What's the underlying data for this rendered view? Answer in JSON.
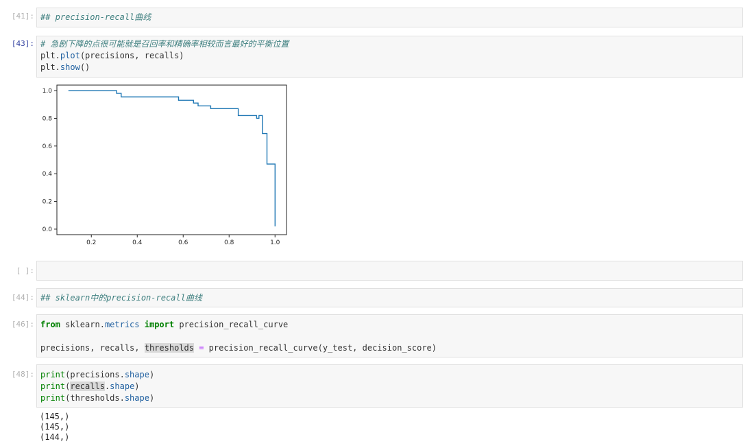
{
  "cells": {
    "c41": {
      "prompt": "[41]:",
      "text": "## precision-recall曲线"
    },
    "c43": {
      "prompt": "[43]:",
      "comment": "# 急剧下降的点很可能就是召回率和精确率相较而言最好的平衡位置",
      "l2_a": "plt.",
      "l2_b": "plot",
      "l2_c": "(precisions, recalls)",
      "l3_a": "plt.",
      "l3_b": "show",
      "l3_c": "()"
    },
    "cempty": {
      "prompt": "[ ]:"
    },
    "c44": {
      "prompt": "[44]:",
      "text": "## sklearn中的precision-recall曲线"
    },
    "c46": {
      "prompt": "[46]:",
      "l1_kw1": "from",
      "l1_mod": " sklearn.",
      "l1_attr": "metrics",
      "l1_kw2": "import",
      "l1_name": " precision_recall_curve",
      "l2_a": "precisions, recalls, ",
      "l2_hl": "thresholds",
      "l2_op": "=",
      "l2_b": " precision_recall_curve(y_test, decision_score)"
    },
    "c48": {
      "prompt": "[48]:",
      "l1_fn": "print",
      "l1_a": "(precisions.",
      "l1_attr": "shape",
      "l1_b": ")",
      "l2_fn": "print",
      "l2_a": "(",
      "l2_hl": "recalls",
      "l2_b": ".",
      "l2_attr": "shape",
      "l2_c": ")",
      "l3_fn": "print",
      "l3_a": "(thresholds.",
      "l3_attr": "shape",
      "l3_b": ")",
      "out1": "(145,)",
      "out2": "(145,)",
      "out3": "(144,)"
    }
  },
  "chart_data": {
    "type": "line",
    "xlim": [
      0.05,
      1.05
    ],
    "ylim": [
      -0.04,
      1.04
    ],
    "xticks": [
      "0.2",
      "0.4",
      "0.6",
      "0.8",
      "1.0"
    ],
    "xtick_values": [
      0.2,
      0.4,
      0.6,
      0.8,
      1.0
    ],
    "yticks": [
      "0.0",
      "0.2",
      "0.4",
      "0.6",
      "0.8",
      "1.0"
    ],
    "ytick_values": [
      0.0,
      0.2,
      0.4,
      0.6,
      0.8,
      1.0
    ],
    "line_color": "#1f77b4",
    "series": [
      {
        "x": [
          0.1,
          0.31,
          0.31,
          0.33,
          0.33,
          0.58,
          0.58,
          0.645,
          0.645,
          0.665,
          0.665,
          0.72,
          0.72,
          0.84,
          0.84,
          0.92,
          0.92,
          0.93,
          0.93,
          0.945,
          0.945,
          0.965,
          0.965,
          0.99,
          0.99,
          1.0,
          1.0
        ],
        "y": [
          1.0,
          1.0,
          0.98,
          0.98,
          0.955,
          0.955,
          0.93,
          0.93,
          0.91,
          0.91,
          0.89,
          0.89,
          0.87,
          0.87,
          0.82,
          0.82,
          0.8,
          0.8,
          0.82,
          0.82,
          0.69,
          0.69,
          0.47,
          0.47,
          0.47,
          0.47,
          0.02
        ]
      }
    ]
  }
}
